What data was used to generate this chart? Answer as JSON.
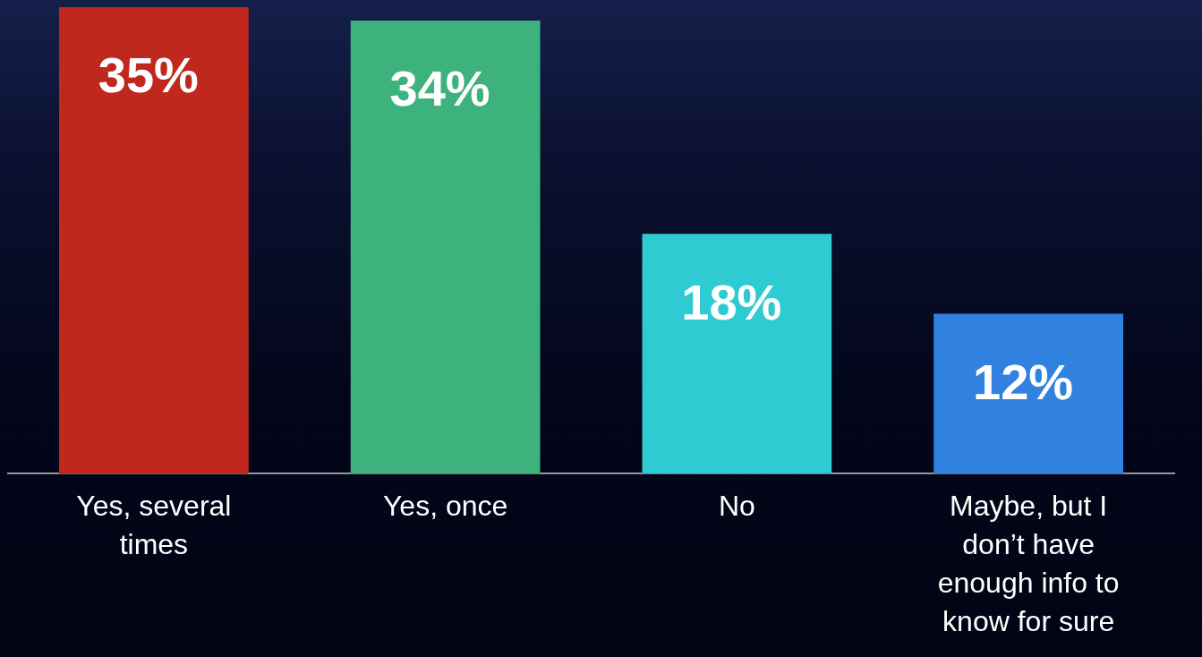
{
  "chart_data": {
    "type": "bar",
    "categories": [
      "Yes, several times",
      "Yes, once",
      "No",
      "Maybe, but I don’t have enough info to know for sure"
    ],
    "values": [
      35,
      34,
      18,
      12
    ],
    "colors": [
      "#c0271d",
      "#3db27d",
      "#2ecbd2",
      "#3181e0"
    ],
    "value_labels": [
      "35%",
      "34%",
      "18%",
      "12%"
    ],
    "grid": false,
    "legend": false
  }
}
